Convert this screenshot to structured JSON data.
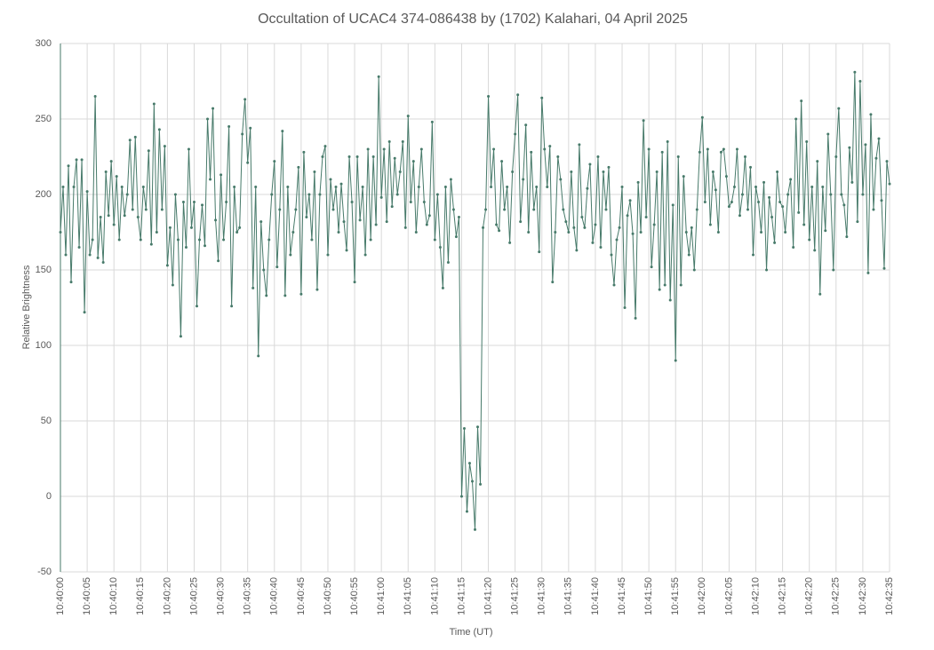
{
  "chart_data": {
    "type": "line",
    "title": "Occultation of UCAC4 374-086438 by (1702) Kalahari, 04 April 2025",
    "x_label": "Time (UT)",
    "y_label": "Relative Brightness",
    "x": [
      0,
      0.5,
      1,
      1.5,
      2,
      2.5,
      3,
      3.5,
      4,
      4.5,
      5,
      5.5,
      6,
      6.5,
      7,
      7.5,
      8,
      8.5,
      9,
      9.5,
      10,
      10.5,
      11,
      11.5,
      12,
      12.5,
      13,
      13.5,
      14,
      14.5,
      15,
      15.5,
      16,
      16.5,
      17,
      17.5,
      18,
      18.5,
      19,
      19.5,
      20,
      20.5,
      21,
      21.5,
      22,
      22.5,
      23,
      23.5,
      24,
      24.5,
      25,
      25.5,
      26,
      26.5,
      27,
      27.5,
      28,
      28.5,
      29,
      29.5,
      30,
      30.5,
      31,
      31.5,
      32,
      32.5,
      33,
      33.5,
      34,
      34.5,
      35,
      35.5,
      36,
      36.5,
      37,
      37.5,
      38,
      38.5,
      39,
      39.5,
      40,
      40.5,
      41,
      41.5,
      42,
      42.5,
      43,
      43.5,
      44,
      44.5,
      45,
      45.5,
      46,
      46.5,
      47,
      47.5,
      48,
      48.5,
      49,
      49.5,
      50,
      50.5,
      51,
      51.5,
      52,
      52.5,
      53,
      53.5,
      54,
      54.5,
      55,
      55.5,
      56,
      56.5,
      57,
      57.5,
      58,
      58.5,
      59,
      59.5,
      60,
      60.5,
      61,
      61.5,
      62,
      62.5,
      63,
      63.5,
      64,
      64.5,
      65,
      65.5,
      66,
      66.5,
      67,
      67.5,
      68,
      68.5,
      69,
      69.5,
      70,
      70.5,
      71,
      71.5,
      72,
      72.5,
      73,
      73.5,
      74,
      74.5,
      75,
      75.5,
      76,
      76.5,
      77,
      77.5,
      78,
      78.5,
      79,
      79.5,
      80,
      80.5,
      81,
      81.5,
      82,
      82.5,
      83,
      83.5,
      84,
      84.5,
      85,
      85.5,
      86,
      86.5,
      87,
      87.5,
      88,
      88.5,
      89,
      89.5,
      90,
      90.5,
      91,
      91.5,
      92,
      92.5,
      93,
      93.5,
      94,
      94.5,
      95,
      95.5,
      96,
      96.5,
      97,
      97.5,
      98,
      98.5,
      99,
      99.5,
      100,
      100.5,
      101,
      101.5,
      102,
      102.5,
      103,
      103.5,
      104,
      104.5,
      105,
      105.5,
      106,
      106.5,
      107,
      107.5,
      108,
      108.5,
      109,
      109.5,
      110,
      110.5,
      111,
      111.5,
      112,
      112.5,
      113,
      113.5,
      114,
      114.5,
      115,
      115.5,
      116,
      116.5,
      117,
      117.5,
      118,
      118.5,
      119,
      119.5,
      120,
      120.5,
      121,
      121.5,
      122,
      122.5,
      123,
      123.5,
      124,
      124.5,
      125,
      125.5,
      126,
      126.5,
      127,
      127.5,
      128,
      128.5,
      129,
      129.5,
      130,
      130.5,
      131,
      131.5,
      132,
      132.5,
      133,
      133.5,
      134,
      134.5,
      135,
      135.5,
      136,
      136.5,
      137,
      137.5,
      138,
      138.5,
      139,
      139.5,
      140,
      140.5,
      141,
      141.5,
      142,
      142.5,
      143,
      143.5,
      144,
      144.5,
      145,
      145.5,
      146,
      146.5,
      147,
      147.5,
      148,
      148.5,
      149,
      149.5,
      150,
      150.5,
      151,
      151.5,
      152,
      152.5,
      153,
      153.5,
      154,
      154.5,
      155
    ],
    "series": [
      {
        "name": "Relative Brightness",
        "color": "#477a6a",
        "values": [
          175,
          205,
          160,
          219,
          142,
          205,
          223,
          165,
          223,
          122,
          202,
          160,
          170,
          265,
          158,
          185,
          155,
          215,
          186,
          222,
          180,
          212,
          170,
          205,
          186,
          200,
          236,
          190,
          238,
          185,
          170,
          205,
          190,
          229,
          167,
          260,
          175,
          243,
          190,
          232,
          153,
          178,
          140,
          200,
          170,
          106,
          195,
          165,
          230,
          178,
          195,
          126,
          170,
          193,
          166,
          250,
          210,
          257,
          183,
          156,
          213,
          170,
          195,
          245,
          126,
          205,
          175,
          178,
          240,
          263,
          221,
          244,
          138,
          205,
          93,
          182,
          150,
          133,
          170,
          200,
          222,
          152,
          190,
          242,
          133,
          205,
          160,
          175,
          190,
          218,
          134,
          228,
          185,
          200,
          170,
          215,
          137,
          200,
          225,
          232,
          160,
          210,
          190,
          205,
          175,
          207,
          182,
          163,
          225,
          195,
          142,
          225,
          183,
          205,
          160,
          230,
          170,
          225,
          180,
          278,
          198,
          230,
          182,
          235,
          192,
          224,
          200,
          215,
          235,
          178,
          252,
          195,
          222,
          175,
          205,
          230,
          195,
          180,
          186,
          248,
          170,
          200,
          165,
          138,
          205,
          155,
          210,
          190,
          172,
          185,
          0,
          45,
          -10,
          22,
          10,
          -22,
          46,
          8,
          178,
          190,
          265,
          205,
          230,
          180,
          176,
          222,
          190,
          205,
          168,
          215,
          240,
          266,
          182,
          210,
          246,
          175,
          228,
          190,
          205,
          162,
          264,
          230,
          205,
          232,
          142,
          175,
          225,
          210,
          190,
          182,
          175,
          215,
          178,
          163,
          233,
          185,
          178,
          204,
          220,
          168,
          180,
          225,
          165,
          215,
          190,
          218,
          160,
          140,
          170,
          178,
          205,
          125,
          186,
          196,
          174,
          118,
          208,
          175,
          249,
          185,
          230,
          152,
          180,
          215,
          137,
          228,
          140,
          235,
          130,
          193,
          90,
          225,
          140,
          212,
          175,
          160,
          178,
          150,
          190,
          228,
          251,
          195,
          230,
          180,
          215,
          203,
          175,
          228,
          230,
          212,
          192,
          195,
          205,
          230,
          186,
          200,
          225,
          190,
          218,
          160,
          205,
          195,
          175,
          208,
          150,
          198,
          185,
          168,
          215,
          195,
          192,
          175,
          200,
          210,
          165,
          250,
          188,
          262,
          180,
          235,
          170,
          205,
          163,
          222,
          134,
          205,
          176,
          240,
          200,
          150,
          225,
          257,
          200,
          193,
          172,
          231,
          208,
          281,
          182,
          275,
          200,
          233,
          148,
          253,
          190,
          224,
          237,
          196,
          151,
          222,
          207
        ]
      }
    ],
    "xlim": [
      0,
      155
    ],
    "xticks": [
      {
        "value": 0,
        "label": "10:40:00"
      },
      {
        "value": 5,
        "label": "10:40:05"
      },
      {
        "value": 10,
        "label": "10:40:10"
      },
      {
        "value": 15,
        "label": "10:40:15"
      },
      {
        "value": 20,
        "label": "10:40:20"
      },
      {
        "value": 25,
        "label": "10:40:25"
      },
      {
        "value": 30,
        "label": "10:40:30"
      },
      {
        "value": 35,
        "label": "10:40:35"
      },
      {
        "value": 40,
        "label": "10:40:40"
      },
      {
        "value": 45,
        "label": "10:40:45"
      },
      {
        "value": 50,
        "label": "10:40:50"
      },
      {
        "value": 55,
        "label": "10:40:55"
      },
      {
        "value": 60,
        "label": "10:41:00"
      },
      {
        "value": 65,
        "label": "10:41:05"
      },
      {
        "value": 70,
        "label": "10:41:10"
      },
      {
        "value": 75,
        "label": "10:41:15"
      },
      {
        "value": 80,
        "label": "10:41:20"
      },
      {
        "value": 85,
        "label": "10:41:25"
      },
      {
        "value": 90,
        "label": "10:41:30"
      },
      {
        "value": 95,
        "label": "10:41:35"
      },
      {
        "value": 100,
        "label": "10:41:40"
      },
      {
        "value": 105,
        "label": "10:41:45"
      },
      {
        "value": 110,
        "label": "10:41:50"
      },
      {
        "value": 115,
        "label": "10:41:55"
      },
      {
        "value": 120,
        "label": "10:42:00"
      },
      {
        "value": 125,
        "label": "10:42:05"
      },
      {
        "value": 130,
        "label": "10:42:10"
      },
      {
        "value": 135,
        "label": "10:42:15"
      },
      {
        "value": 140,
        "label": "10:42:20"
      },
      {
        "value": 145,
        "label": "10:42:25"
      },
      {
        "value": 150,
        "label": "10:42:30"
      },
      {
        "value": 155,
        "label": "10:42:35"
      }
    ],
    "ylim": [
      -50,
      300
    ],
    "yticks": [
      -50,
      0,
      50,
      100,
      150,
      200,
      250,
      300
    ],
    "grid": true
  }
}
